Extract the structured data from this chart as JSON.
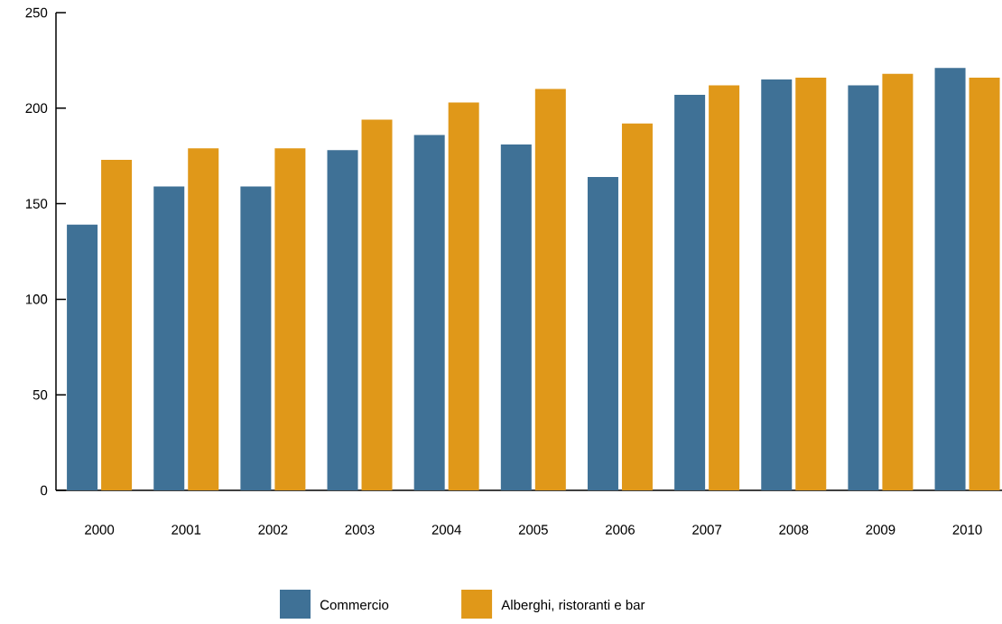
{
  "chart_data": {
    "type": "bar",
    "categories": [
      "2000",
      "2001",
      "2002",
      "2003",
      "2004",
      "2005",
      "2006",
      "2007",
      "2008",
      "2009",
      "2010"
    ],
    "series": [
      {
        "name": "Commercio",
        "color": "#3f7196",
        "values": [
          139,
          159,
          159,
          178,
          186,
          181,
          164,
          207,
          215,
          212,
          221
        ]
      },
      {
        "name": "Alberghi, ristoranti e bar",
        "color": "#e09819",
        "values": [
          173,
          179,
          179,
          194,
          203,
          210,
          192,
          212,
          216,
          218,
          216
        ]
      }
    ],
    "ylim": [
      0,
      250
    ],
    "yticks": [
      0,
      50,
      100,
      150,
      200,
      250
    ],
    "legend": "bottom"
  }
}
